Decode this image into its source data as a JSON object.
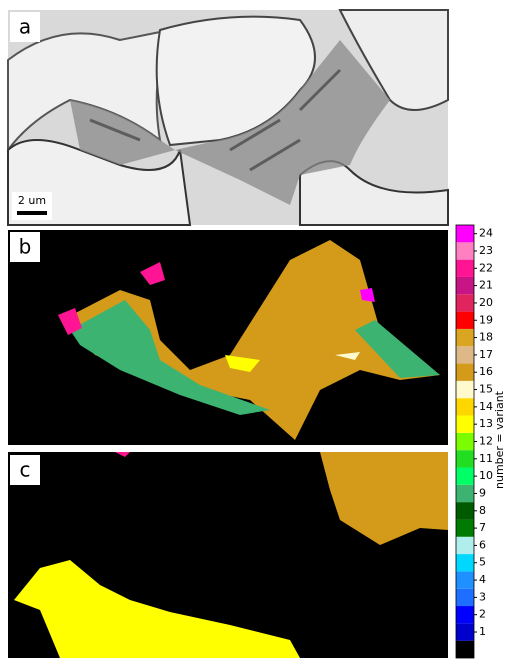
{
  "panels": [
    {
      "label": "a",
      "scale_bar": "2 um"
    },
    {
      "label": "b"
    },
    {
      "label": "c"
    }
  ],
  "colorbar": {
    "label": "number = variant",
    "ticks": [
      1,
      2,
      3,
      4,
      5,
      6,
      7,
      8,
      9,
      10,
      11,
      12,
      13,
      14,
      15,
      16,
      17,
      18,
      19,
      20,
      21,
      22,
      23,
      24
    ],
    "colors": [
      "#0000cd",
      "#0000ff",
      "#1e6fff",
      "#1e90ff",
      "#00d8ff",
      "#b0eeee",
      "#007a00",
      "#005a00",
      "#3cb371",
      "#00ff66",
      "#22dd22",
      "#7cfc00",
      "#ffff00",
      "#ffd700",
      "#fffacd",
      "#d49a1a",
      "#deb887",
      "#daa520",
      "#ff0000",
      "#e0245e",
      "#c71585",
      "#ff1493",
      "#ff80c0",
      "#ff00ff"
    ]
  }
}
